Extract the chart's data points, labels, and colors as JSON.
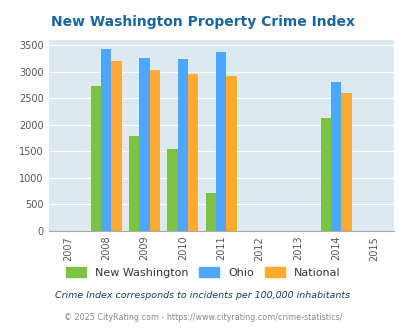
{
  "title": "New Washington Property Crime Index",
  "years": [
    2007,
    2008,
    2009,
    2010,
    2011,
    2012,
    2013,
    2014,
    2015
  ],
  "bar_years": [
    2008,
    2009,
    2010,
    2011,
    2014
  ],
  "new_washington": [
    2730,
    1780,
    1550,
    720,
    2130
  ],
  "ohio": [
    3420,
    3250,
    3230,
    3360,
    2800
  ],
  "national": [
    3200,
    3030,
    2960,
    2910,
    2590
  ],
  "color_nw": "#7dc242",
  "color_ohio": "#4da6ff",
  "color_national": "#ffaa33",
  "bg_color": "#dce9f0",
  "title_color": "#1a6699",
  "ylabel_values": [
    0,
    500,
    1000,
    1500,
    2000,
    2500,
    3000,
    3500
  ],
  "ylim": [
    0,
    3600
  ],
  "xlim": [
    2006.5,
    2015.5
  ],
  "legend_labels": [
    "New Washington",
    "Ohio",
    "National"
  ],
  "footnote1": "Crime Index corresponds to incidents per 100,000 inhabitants",
  "footnote2": "© 2025 CityRating.com - https://www.cityrating.com/crime-statistics/",
  "bar_width": 0.27,
  "footnote1_color": "#1a3a5c",
  "footnote2_color": "#888888",
  "footnote2_link_color": "#4da6ff"
}
